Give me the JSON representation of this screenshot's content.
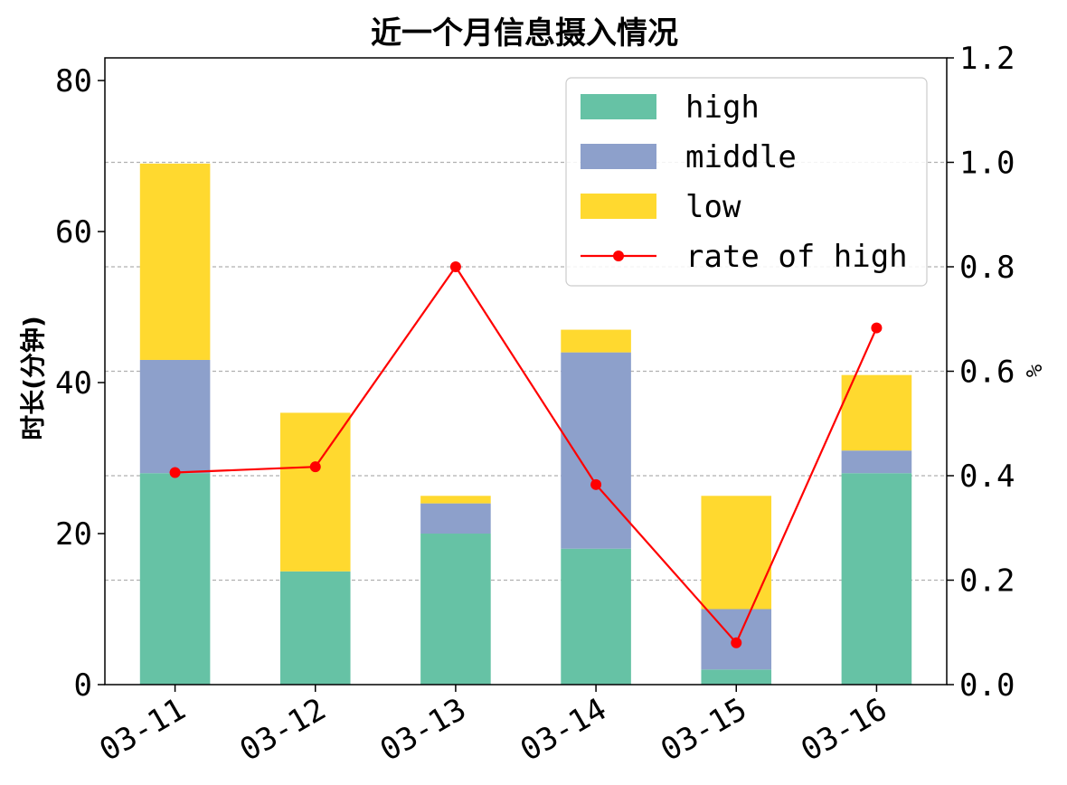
{
  "chart_data": {
    "type": "bar",
    "stacked": true,
    "title": "近一个月信息摄入情况",
    "xlabel": "",
    "ylabel": "时长(分钟)",
    "y2label": "%",
    "categories": [
      "03-11",
      "03-12",
      "03-13",
      "03-14",
      "03-15",
      "03-16"
    ],
    "series": [
      {
        "name": "high",
        "type": "bar",
        "color": "#66c2a5",
        "values": [
          28,
          15,
          20,
          18,
          2,
          28
        ]
      },
      {
        "name": "middle",
        "type": "bar",
        "color": "#8da0cb",
        "values": [
          15,
          0,
          4,
          26,
          8,
          3
        ]
      },
      {
        "name": "low",
        "type": "bar",
        "color": "#ffd92f",
        "values": [
          26,
          21,
          1,
          3,
          15,
          10
        ]
      },
      {
        "name": "rate of high",
        "type": "line",
        "axis": "right",
        "color": "#ff0000",
        "values": [
          0.406,
          0.417,
          0.8,
          0.383,
          0.08,
          0.683
        ]
      }
    ],
    "ylim": [
      0,
      83
    ],
    "yticks": [
      "0",
      "20",
      "40",
      "60",
      "80"
    ],
    "y2lim": [
      0,
      1.2
    ],
    "y2ticks": [
      "0.0",
      "0.2",
      "0.4",
      "0.6",
      "0.8",
      "1.0",
      "1.2"
    ],
    "grid": "horizontal-dashed-right-axis",
    "legend_position": "top-right"
  }
}
